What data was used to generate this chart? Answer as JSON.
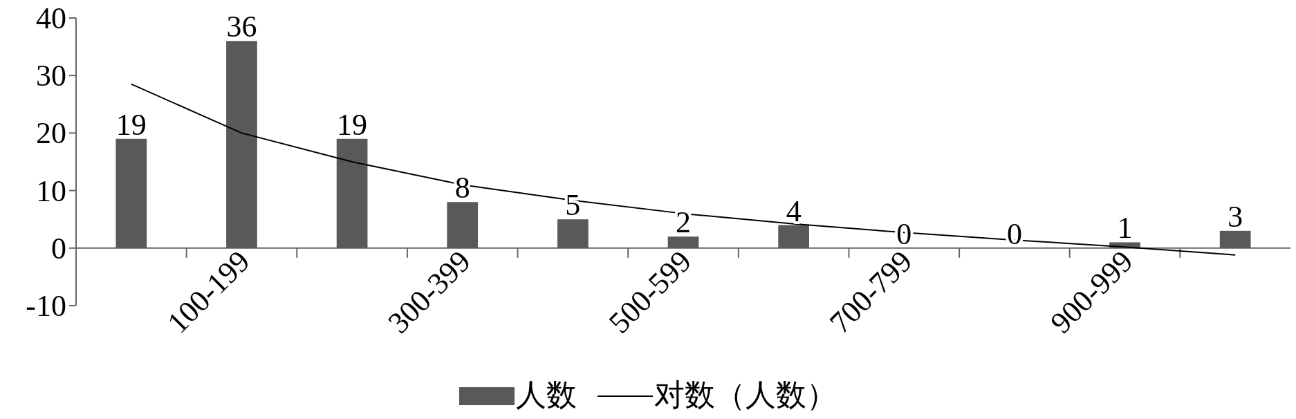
{
  "chart_data": {
    "type": "bar",
    "categories": [
      null,
      "100-199",
      null,
      "300-399",
      null,
      "500-599",
      null,
      "700-799",
      null,
      "900-999",
      null
    ],
    "series": [
      {
        "name": "人数",
        "color": "#595959",
        "values": [
          19,
          36,
          19,
          8,
          5,
          2,
          4,
          0,
          0,
          1,
          3
        ],
        "value_labels": [
          "19",
          "36",
          "19",
          "8",
          "5",
          "2",
          "4",
          "0",
          "0",
          "1",
          "3"
        ]
      },
      {
        "name": "对数（人数）",
        "type": "line",
        "color": "#000000",
        "values": [
          28.5,
          20,
          15,
          11,
          8.3,
          6,
          4.2,
          2.7,
          1.4,
          0.2,
          -1.2
        ]
      }
    ],
    "ylim": [
      -10,
      40
    ],
    "yticks": [
      -10,
      0,
      10,
      20,
      30,
      40
    ],
    "legend": "bottom"
  }
}
